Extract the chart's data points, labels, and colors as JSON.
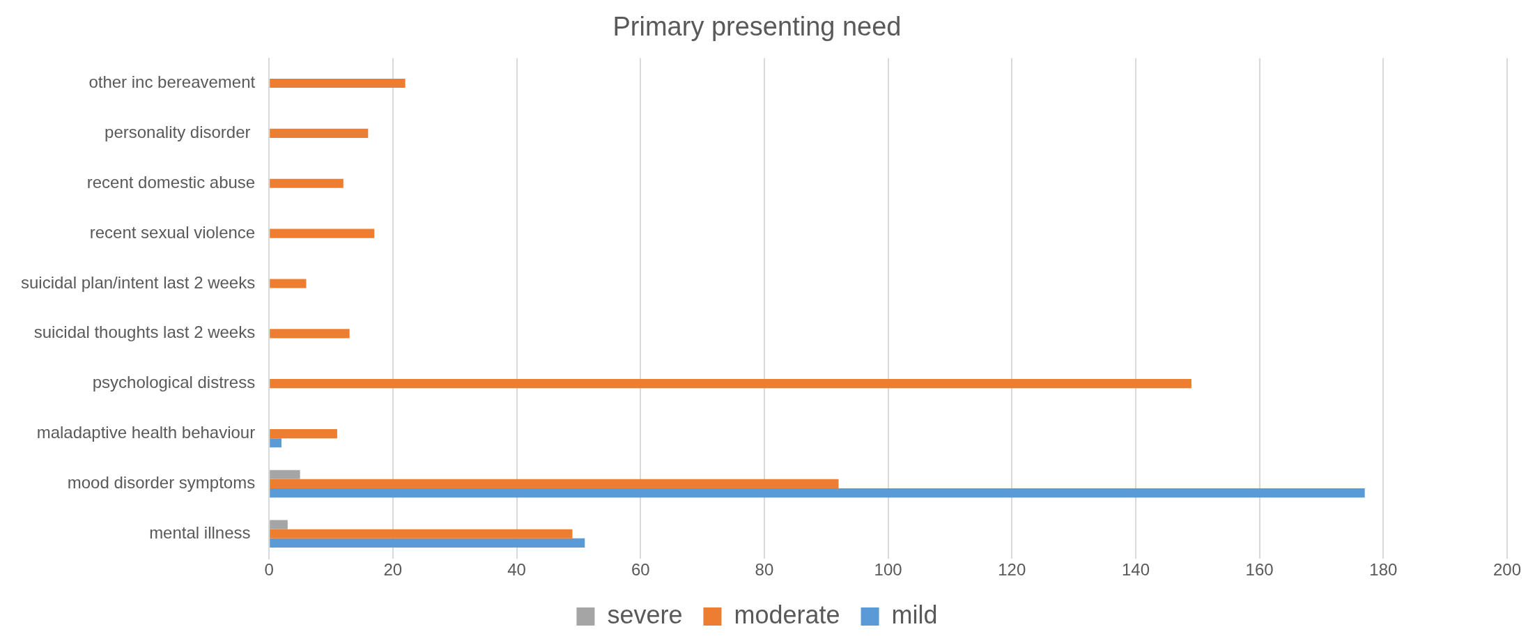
{
  "chart_data": {
    "type": "bar",
    "orientation": "horizontal",
    "title": "Primary presenting need",
    "categories": [
      "other inc bereavement",
      "personality disorder ",
      "recent domestic abuse",
      "recent sexual violence",
      "suicidal plan/intent last 2 weeks",
      "suicidal thoughts last 2 weeks",
      "psychological distress",
      "maladaptive health behaviour",
      "mood disorder symptoms",
      "mental illness "
    ],
    "series": [
      {
        "name": "severe",
        "color": "#a5a5a5",
        "values": [
          null,
          null,
          null,
          null,
          null,
          null,
          null,
          null,
          5,
          3
        ]
      },
      {
        "name": "moderate",
        "color": "#ed7d31",
        "values": [
          22,
          16,
          12,
          17,
          6,
          13,
          149,
          11,
          92,
          49
        ]
      },
      {
        "name": "mild",
        "color": "#5b9bd5",
        "values": [
          null,
          null,
          null,
          null,
          null,
          null,
          null,
          2,
          177,
          51
        ]
      }
    ],
    "xlim": [
      0,
      200
    ],
    "xticks": [
      0,
      20,
      40,
      60,
      80,
      100,
      120,
      140,
      160,
      180,
      200
    ],
    "grid": "x",
    "legend": "bottom"
  }
}
